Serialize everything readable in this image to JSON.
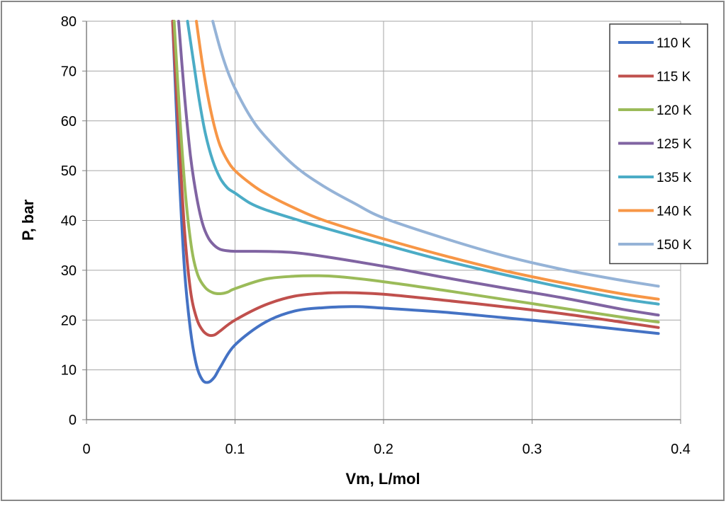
{
  "chart_data": {
    "type": "line",
    "title": "",
    "xlabel": "Vm, L/mol",
    "ylabel": "P, bar",
    "xlim": [
      0,
      0.4
    ],
    "ylim": [
      0,
      80
    ],
    "xticks": [
      0,
      0.1,
      0.2,
      0.3,
      0.4
    ],
    "xtick_labels": [
      "0",
      "0.1",
      "0.2",
      "0.3",
      "0.4"
    ],
    "yticks": [
      0,
      10,
      20,
      30,
      40,
      50,
      60,
      70,
      80
    ],
    "ytick_labels": [
      "0",
      "10",
      "20",
      "30",
      "40",
      "50",
      "60",
      "70",
      "80"
    ],
    "grid": true,
    "legend_position": "top-right",
    "series": [
      {
        "name": "110 K",
        "color": "#4472C4",
        "x": [
          0.058,
          0.062,
          0.066,
          0.07,
          0.074,
          0.078,
          0.082,
          0.086,
          0.09,
          0.1,
          0.12,
          0.14,
          0.16,
          0.18,
          0.19,
          0.2,
          0.24,
          0.28,
          0.32,
          0.36,
          0.385
        ],
        "y": [
          80,
          52,
          30,
          18,
          11,
          8,
          7.5,
          8.5,
          10.5,
          15,
          19.5,
          21.8,
          22.5,
          22.7,
          22.6,
          22.4,
          21.6,
          20.5,
          19.4,
          18.1,
          17.3
        ]
      },
      {
        "name": "115 K",
        "color": "#C0504D",
        "x": [
          0.058,
          0.062,
          0.066,
          0.07,
          0.074,
          0.078,
          0.082,
          0.086,
          0.09,
          0.1,
          0.12,
          0.14,
          0.16,
          0.175,
          0.2,
          0.24,
          0.28,
          0.32,
          0.36,
          0.385
        ],
        "y": [
          80,
          58,
          38,
          26,
          20.5,
          18,
          17,
          17,
          17.8,
          20,
          23,
          24.8,
          25.4,
          25.5,
          25.2,
          24,
          22.7,
          21.3,
          19.6,
          18.5
        ]
      },
      {
        "name": "120 K",
        "color": "#9BBB59",
        "x": [
          0.059,
          0.063,
          0.067,
          0.071,
          0.075,
          0.08,
          0.085,
          0.09,
          0.095,
          0.1,
          0.12,
          0.14,
          0.155,
          0.17,
          0.2,
          0.24,
          0.28,
          0.32,
          0.36,
          0.385
        ],
        "y": [
          80,
          60,
          44,
          34,
          29,
          26.5,
          25.5,
          25.3,
          25.6,
          26.3,
          28.2,
          28.8,
          28.9,
          28.7,
          27.7,
          26,
          24.2,
          22.4,
          20.6,
          19.6
        ]
      },
      {
        "name": "125 K",
        "color": "#8064A2",
        "x": [
          0.062,
          0.066,
          0.07,
          0.074,
          0.078,
          0.082,
          0.086,
          0.09,
          0.095,
          0.1,
          0.11,
          0.13,
          0.15,
          0.2,
          0.24,
          0.28,
          0.32,
          0.36,
          0.385
        ],
        "y": [
          80,
          65,
          53,
          45,
          39.5,
          36.5,
          35,
          34.2,
          33.9,
          33.8,
          33.8,
          33.7,
          33.2,
          30.8,
          28.6,
          26.5,
          24.5,
          22.2,
          21
        ]
      },
      {
        "name": "135 K",
        "color": "#4BACC6",
        "x": [
          0.068,
          0.072,
          0.076,
          0.08,
          0.085,
          0.09,
          0.095,
          0.1,
          0.11,
          0.12,
          0.14,
          0.16,
          0.2,
          0.24,
          0.28,
          0.32,
          0.36,
          0.385
        ],
        "y": [
          80,
          72,
          64,
          57.5,
          52,
          48.5,
          46.5,
          45.5,
          43.5,
          42.2,
          40.3,
          38.5,
          35.2,
          32,
          29.2,
          26.6,
          24.3,
          23.2
        ]
      },
      {
        "name": "140 K",
        "color": "#F79646",
        "x": [
          0.074,
          0.078,
          0.082,
          0.086,
          0.09,
          0.095,
          0.1,
          0.11,
          0.12,
          0.14,
          0.16,
          0.2,
          0.24,
          0.28,
          0.32,
          0.36,
          0.385
        ],
        "y": [
          80,
          71.5,
          64.5,
          59,
          55,
          52,
          50,
          47.5,
          45.5,
          42.5,
          40,
          36.3,
          33,
          30,
          27.5,
          25.3,
          24.2
        ]
      },
      {
        "name": "150 K",
        "color": "#95B3D7",
        "x": [
          0.085,
          0.09,
          0.095,
          0.1,
          0.11,
          0.12,
          0.14,
          0.16,
          0.18,
          0.2,
          0.24,
          0.28,
          0.32,
          0.36,
          0.385
        ],
        "y": [
          80,
          74.5,
          70,
          66.5,
          61,
          57,
          51,
          46.8,
          43.5,
          40.5,
          36.5,
          33,
          30.2,
          28,
          26.8
        ]
      }
    ]
  }
}
